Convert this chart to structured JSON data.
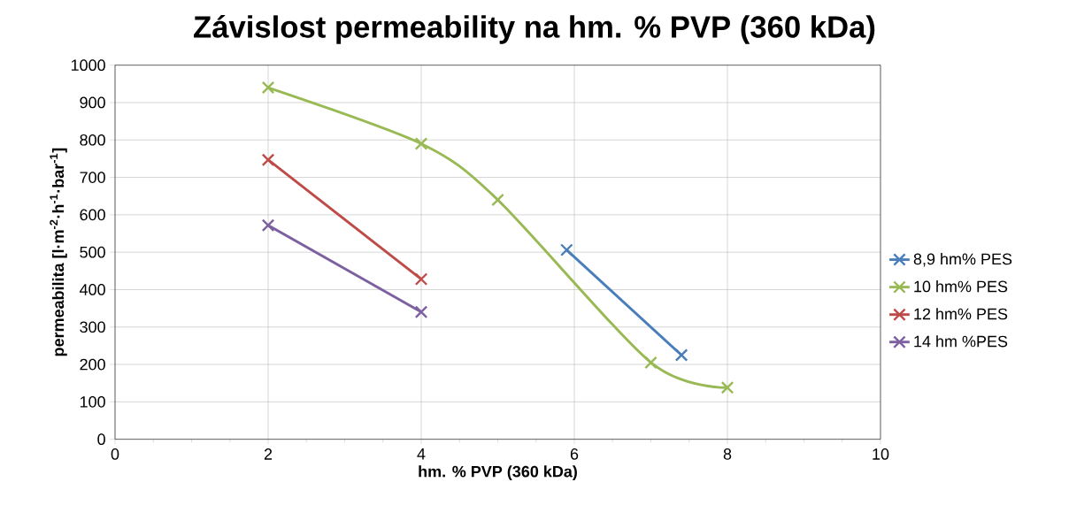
{
  "chart_data": {
    "type": "line",
    "title": "Závislost permeability na hm. % PVP (360 kDa)",
    "xlabel": "hm. % PVP (360 kDa)",
    "ylabel": "permeabilita [l·m$^{-2}$·h$^{-1}$·bar$^{-1}$]",
    "xlim": [
      0,
      10
    ],
    "xticks": [
      0,
      2,
      4,
      6,
      8,
      10
    ],
    "ylim": [
      0,
      1000
    ],
    "yticks": [
      0,
      100,
      200,
      300,
      400,
      500,
      600,
      700,
      800,
      900,
      1000
    ],
    "grid": true,
    "legend": "right",
    "marker": "cross",
    "line_style": "solid",
    "series": [
      {
        "name": "8,9 hm% PES",
        "color": "#4a7ebb",
        "x": [
          5.9,
          7.4
        ],
        "values": [
          506,
          225
        ]
      },
      {
        "name": "10 hm% PES",
        "color": "#98b954",
        "x": [
          2,
          4,
          5,
          7,
          8
        ],
        "values": [
          940,
          790,
          640,
          205,
          138
        ]
      },
      {
        "name": "12 hm% PES",
        "color": "#be4b48",
        "x": [
          2,
          4
        ],
        "values": [
          747,
          428
        ]
      },
      {
        "name": "14 hm %PES",
        "color": "#7d60a0",
        "x": [
          2,
          4
        ],
        "values": [
          572,
          340
        ]
      }
    ]
  }
}
